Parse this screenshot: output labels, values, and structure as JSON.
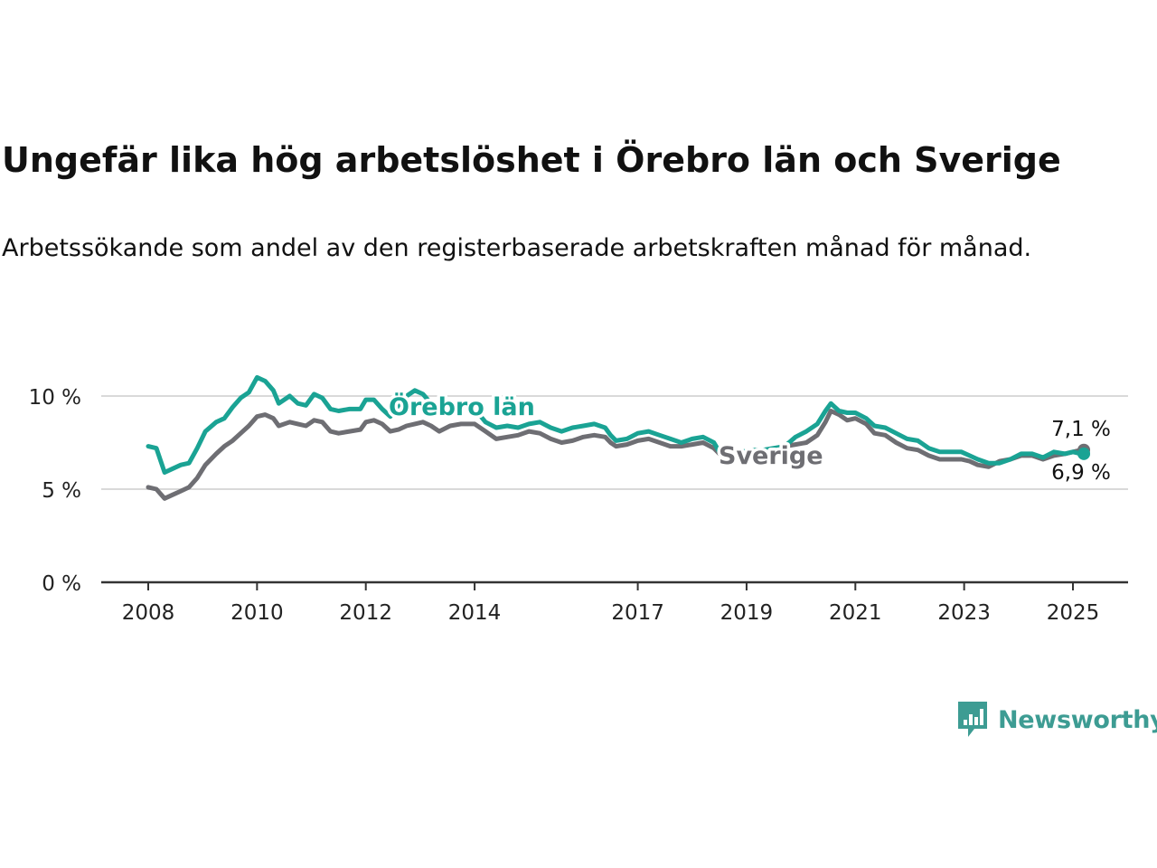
{
  "title": "Ungefär lika hög arbetslöshet i Örebro län och Sverige",
  "subtitle": "Arbetssökande som andel av den registerbaserade arbetskraften månad för månad.",
  "brand": {
    "name": "Newsworthy",
    "color": "#3d9c93",
    "icon": "newsworthy-logo-icon"
  },
  "chart_data": {
    "type": "line",
    "xlabel": "",
    "ylabel": "",
    "ylim": [
      0,
      10
    ],
    "y_ticks": [
      {
        "value": 0,
        "label": "0 %"
      },
      {
        "value": 5,
        "label": "5 %"
      },
      {
        "value": 10,
        "label": "10 %"
      }
    ],
    "x_ticks": [
      {
        "value": 2008,
        "label": "2008"
      },
      {
        "value": 2010,
        "label": "2010"
      },
      {
        "value": 2012,
        "label": "2012"
      },
      {
        "value": 2014,
        "label": "2014"
      },
      {
        "value": 2017,
        "label": "2017"
      },
      {
        "value": 2019,
        "label": "2019"
      },
      {
        "value": 2021,
        "label": "2021"
      },
      {
        "value": 2023,
        "label": "2023"
      },
      {
        "value": 2025,
        "label": "2025"
      }
    ],
    "grid": true,
    "series": [
      {
        "name": "Örebro län",
        "color": "#1aa394",
        "end_label": "6,9 %",
        "points": [
          [
            2008.0,
            7.3
          ],
          [
            2008.15,
            7.2
          ],
          [
            2008.3,
            5.9
          ],
          [
            2008.45,
            6.1
          ],
          [
            2008.6,
            6.3
          ],
          [
            2008.75,
            6.4
          ],
          [
            2008.9,
            7.2
          ],
          [
            2009.05,
            8.1
          ],
          [
            2009.25,
            8.6
          ],
          [
            2009.4,
            8.8
          ],
          [
            2009.55,
            9.4
          ],
          [
            2009.7,
            9.9
          ],
          [
            2009.85,
            10.2
          ],
          [
            2010.0,
            11.0
          ],
          [
            2010.15,
            10.8
          ],
          [
            2010.3,
            10.3
          ],
          [
            2010.4,
            9.6
          ],
          [
            2010.6,
            10.0
          ],
          [
            2010.75,
            9.6
          ],
          [
            2010.9,
            9.5
          ],
          [
            2011.05,
            10.1
          ],
          [
            2011.2,
            9.9
          ],
          [
            2011.35,
            9.3
          ],
          [
            2011.5,
            9.2
          ],
          [
            2011.7,
            9.3
          ],
          [
            2011.9,
            9.3
          ],
          [
            2012.0,
            9.8
          ],
          [
            2012.15,
            9.8
          ],
          [
            2012.3,
            9.3
          ],
          [
            2012.45,
            8.9
          ],
          [
            2012.6,
            9.5
          ],
          [
            2012.75,
            10.0
          ],
          [
            2012.9,
            10.3
          ],
          [
            2013.05,
            10.1
          ],
          [
            2013.2,
            9.6
          ],
          [
            2013.4,
            9.1
          ],
          [
            2013.6,
            9.5
          ],
          [
            2013.8,
            9.5
          ],
          [
            2014.0,
            9.3
          ],
          [
            2014.2,
            8.6
          ],
          [
            2014.4,
            8.3
          ],
          [
            2014.6,
            8.4
          ],
          [
            2014.8,
            8.3
          ],
          [
            2015.0,
            8.5
          ],
          [
            2015.2,
            8.6
          ],
          [
            2015.4,
            8.3
          ],
          [
            2015.6,
            8.1
          ],
          [
            2015.8,
            8.3
          ],
          [
            2016.0,
            8.4
          ],
          [
            2016.2,
            8.5
          ],
          [
            2016.4,
            8.3
          ],
          [
            2016.5,
            7.9
          ],
          [
            2016.6,
            7.6
          ],
          [
            2016.8,
            7.7
          ],
          [
            2017.0,
            8.0
          ],
          [
            2017.2,
            8.1
          ],
          [
            2017.4,
            7.9
          ],
          [
            2017.6,
            7.7
          ],
          [
            2017.8,
            7.5
          ],
          [
            2018.0,
            7.7
          ],
          [
            2018.2,
            7.8
          ],
          [
            2018.4,
            7.5
          ],
          [
            2018.5,
            7.0
          ],
          [
            2018.7,
            6.9
          ],
          [
            2018.9,
            7.0
          ],
          [
            2019.1,
            7.1
          ],
          [
            2019.3,
            7.1
          ],
          [
            2019.5,
            7.2
          ],
          [
            2019.7,
            7.3
          ],
          [
            2019.9,
            7.8
          ],
          [
            2020.1,
            8.1
          ],
          [
            2020.3,
            8.5
          ],
          [
            2020.45,
            9.2
          ],
          [
            2020.55,
            9.6
          ],
          [
            2020.7,
            9.2
          ],
          [
            2020.85,
            9.1
          ],
          [
            2021.0,
            9.1
          ],
          [
            2021.2,
            8.8
          ],
          [
            2021.35,
            8.4
          ],
          [
            2021.55,
            8.3
          ],
          [
            2021.75,
            8.0
          ],
          [
            2021.95,
            7.7
          ],
          [
            2022.15,
            7.6
          ],
          [
            2022.35,
            7.2
          ],
          [
            2022.55,
            7.0
          ],
          [
            2022.75,
            7.0
          ],
          [
            2022.95,
            7.0
          ],
          [
            2023.1,
            6.8
          ],
          [
            2023.25,
            6.6
          ],
          [
            2023.45,
            6.4
          ],
          [
            2023.65,
            6.4
          ],
          [
            2023.85,
            6.6
          ],
          [
            2024.05,
            6.9
          ],
          [
            2024.25,
            6.9
          ],
          [
            2024.45,
            6.7
          ],
          [
            2024.65,
            7.0
          ],
          [
            2024.85,
            6.9
          ],
          [
            2025.0,
            7.0
          ],
          [
            2025.15,
            6.9
          ],
          [
            2025.2,
            6.9
          ]
        ]
      },
      {
        "name": "Sverige",
        "color": "#6e6e73",
        "end_label": "7,1 %",
        "points": [
          [
            2008.0,
            5.1
          ],
          [
            2008.15,
            5.0
          ],
          [
            2008.3,
            4.5
          ],
          [
            2008.45,
            4.7
          ],
          [
            2008.6,
            4.9
          ],
          [
            2008.75,
            5.1
          ],
          [
            2008.9,
            5.6
          ],
          [
            2009.05,
            6.3
          ],
          [
            2009.25,
            6.9
          ],
          [
            2009.4,
            7.3
          ],
          [
            2009.55,
            7.6
          ],
          [
            2009.7,
            8.0
          ],
          [
            2009.85,
            8.4
          ],
          [
            2010.0,
            8.9
          ],
          [
            2010.15,
            9.0
          ],
          [
            2010.3,
            8.8
          ],
          [
            2010.4,
            8.4
          ],
          [
            2010.6,
            8.6
          ],
          [
            2010.75,
            8.5
          ],
          [
            2010.9,
            8.4
          ],
          [
            2011.05,
            8.7
          ],
          [
            2011.2,
            8.6
          ],
          [
            2011.35,
            8.1
          ],
          [
            2011.5,
            8.0
          ],
          [
            2011.7,
            8.1
          ],
          [
            2011.9,
            8.2
          ],
          [
            2012.0,
            8.6
          ],
          [
            2012.15,
            8.7
          ],
          [
            2012.3,
            8.5
          ],
          [
            2012.45,
            8.1
          ],
          [
            2012.6,
            8.2
          ],
          [
            2012.75,
            8.4
          ],
          [
            2012.9,
            8.5
          ],
          [
            2013.05,
            8.6
          ],
          [
            2013.2,
            8.4
          ],
          [
            2013.35,
            8.1
          ],
          [
            2013.55,
            8.4
          ],
          [
            2013.75,
            8.5
          ],
          [
            2014.0,
            8.5
          ],
          [
            2014.2,
            8.1
          ],
          [
            2014.4,
            7.7
          ],
          [
            2014.6,
            7.8
          ],
          [
            2014.8,
            7.9
          ],
          [
            2015.0,
            8.1
          ],
          [
            2015.2,
            8.0
          ],
          [
            2015.4,
            7.7
          ],
          [
            2015.6,
            7.5
          ],
          [
            2015.8,
            7.6
          ],
          [
            2016.0,
            7.8
          ],
          [
            2016.2,
            7.9
          ],
          [
            2016.4,
            7.8
          ],
          [
            2016.5,
            7.5
          ],
          [
            2016.6,
            7.3
          ],
          [
            2016.8,
            7.4
          ],
          [
            2017.0,
            7.6
          ],
          [
            2017.2,
            7.7
          ],
          [
            2017.4,
            7.5
          ],
          [
            2017.6,
            7.3
          ],
          [
            2017.8,
            7.3
          ],
          [
            2018.0,
            7.4
          ],
          [
            2018.2,
            7.5
          ],
          [
            2018.4,
            7.2
          ],
          [
            2018.5,
            6.9
          ],
          [
            2018.7,
            6.8
          ],
          [
            2018.9,
            6.9
          ],
          [
            2019.1,
            7.0
          ],
          [
            2019.3,
            7.0
          ],
          [
            2019.5,
            7.1
          ],
          [
            2019.7,
            7.3
          ],
          [
            2019.9,
            7.4
          ],
          [
            2020.1,
            7.5
          ],
          [
            2020.3,
            7.9
          ],
          [
            2020.45,
            8.6
          ],
          [
            2020.55,
            9.2
          ],
          [
            2020.7,
            9.0
          ],
          [
            2020.85,
            8.7
          ],
          [
            2021.0,
            8.8
          ],
          [
            2021.2,
            8.5
          ],
          [
            2021.35,
            8.0
          ],
          [
            2021.55,
            7.9
          ],
          [
            2021.75,
            7.5
          ],
          [
            2021.95,
            7.2
          ],
          [
            2022.15,
            7.1
          ],
          [
            2022.35,
            6.8
          ],
          [
            2022.55,
            6.6
          ],
          [
            2022.75,
            6.6
          ],
          [
            2022.95,
            6.6
          ],
          [
            2023.1,
            6.5
          ],
          [
            2023.25,
            6.3
          ],
          [
            2023.45,
            6.2
          ],
          [
            2023.65,
            6.5
          ],
          [
            2023.85,
            6.6
          ],
          [
            2024.05,
            6.8
          ],
          [
            2024.25,
            6.8
          ],
          [
            2024.45,
            6.6
          ],
          [
            2024.65,
            6.8
          ],
          [
            2024.85,
            6.9
          ],
          [
            2025.0,
            7.0
          ],
          [
            2025.15,
            7.1
          ],
          [
            2025.2,
            7.1
          ]
        ]
      }
    ]
  }
}
